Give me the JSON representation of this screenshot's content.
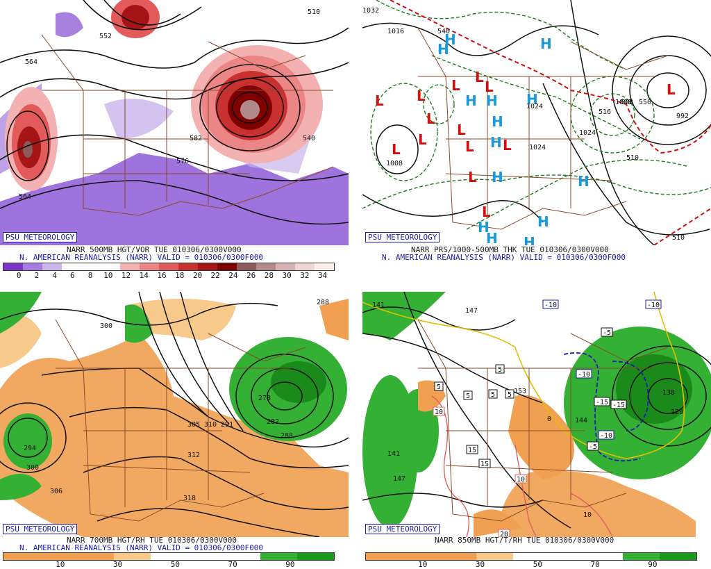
{
  "panels": [
    {
      "badge": "PSU METEOROLOGY",
      "title_line1": "NARR 500MB HGT/VOR TUE 010306/0300V000",
      "title_line2": "N. AMERICAN REANALYSIS (NARR) VALID = 010306/0300F000",
      "colorbar": {
        "colors": [
          "#7a35c9",
          "#a77be0",
          "#c9b4ec",
          "#ffffff",
          "#ffffff",
          "#ffffff",
          "#f4b1b1",
          "#ec8585",
          "#e25a5a",
          "#c93030",
          "#a51515",
          "#7f0000",
          "#8c5a5a",
          "#b08a8a",
          "#d6b3b3",
          "#f0d5d5",
          "#fff0f0"
        ],
        "labels": [
          "0",
          "2",
          "4",
          "6",
          "8",
          "10",
          "12",
          "14",
          "16",
          "18",
          "20",
          "22",
          "24",
          "26",
          "28",
          "30",
          "32",
          "34"
        ]
      },
      "contour_labels": [
        "552",
        "564",
        "576",
        "564",
        "540",
        "582",
        "510"
      ]
    },
    {
      "badge": "PSU METEOROLOGY",
      "title_line1": "NARR PRS/1000-500MB THK TUE 010306/0300V000",
      "title_line2": "N. AMERICAN REANALYSIS (NARR) VALID = 010306/0300F000",
      "contour_labels": [
        "1016",
        "1008",
        "1024",
        "1024",
        "1024",
        "1008",
        "992",
        "540",
        "510",
        "508",
        "550",
        "516",
        "510",
        "1032"
      ],
      "low_marker": "L",
      "high_marker": "H"
    },
    {
      "badge": "PSU METEOROLOGY",
      "title_line1": "NARR 700MB HGT/RH TUE 010306/0300V000",
      "title_line2": "N. AMERICAN REANALYSIS (NARR) VALID = 010306/0300F000",
      "colorbar": {
        "colors": [
          "#f0a050",
          "#f0a050",
          "#f0a050",
          "#f7c98a",
          "#ffffff",
          "#ffffff",
          "#ffffff",
          "#34b034",
          "#1a9a1a"
        ],
        "labels": [
          "10",
          "30",
          "50",
          "70",
          "90"
        ]
      },
      "contour_labels": [
        "288",
        "300",
        "294",
        "300",
        "306",
        "305",
        "310",
        "312",
        "318",
        "278",
        "282",
        "288",
        "291"
      ]
    },
    {
      "badge": "PSU METEOROLOGY",
      "title_line1": "NARR 850MB HGT/T/RH TUE 010306/0300V000",
      "colorbar": {
        "colors": [
          "#f0a050",
          "#f0a050",
          "#f0a050",
          "#f7c98a",
          "#ffffff",
          "#ffffff",
          "#ffffff",
          "#34b034",
          "#1a9a1a"
        ],
        "labels": [
          "10",
          "30",
          "50",
          "70",
          "90"
        ]
      },
      "contour_labels": [
        "141",
        "147",
        "141",
        "147",
        "153",
        "129",
        "138",
        "144",
        "5",
        "5",
        "5",
        "5",
        "5",
        "15",
        "15",
        "10",
        "10",
        "20",
        "-10",
        "-10",
        "-15",
        "-15",
        "-10",
        "-5",
        "-5",
        "-10",
        "0",
        "10"
      ]
    }
  ]
}
